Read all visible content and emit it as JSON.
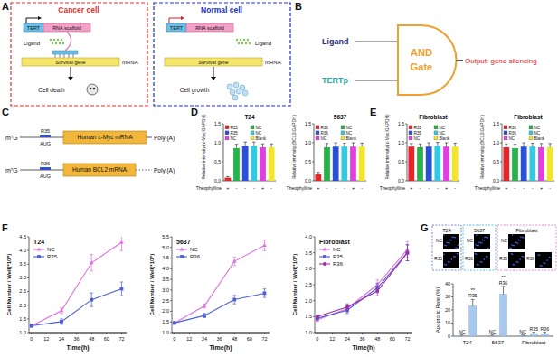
{
  "panel_labels": [
    "A",
    "B",
    "C",
    "D",
    "E",
    "F",
    "G"
  ],
  "diagram_a": {
    "cells": [
      {
        "title": "Cancer cell",
        "color": "#e03030",
        "promoter": "TERT",
        "scaffold": "RNA scaffold",
        "ligand": "Ligand",
        "gene": "Survival gene",
        "transcript": "mRNA",
        "outcome": "Cell death"
      },
      {
        "title": "Normal cell",
        "color": "#2030c0",
        "promoter": "TERT",
        "scaffold": "RNA scaffold",
        "ligand": "Ligand",
        "gene": "Survival gene",
        "transcript": "mRNA",
        "outcome": "Cell growth"
      }
    ]
  },
  "diagram_b": {
    "inputs": [
      {
        "text": "Ligand",
        "color": "#2b2b80"
      },
      {
        "text": "TERTp",
        "color": "#2aa7a0"
      }
    ],
    "gate": [
      "AND",
      "Gate"
    ],
    "gate_color": "#f0a030",
    "output": "Output: gene silencing",
    "output_color": "#e02020"
  },
  "diagram_c": {
    "constructs": [
      {
        "cap": "m⁷G",
        "element": "R35",
        "start": "AUG",
        "gene": "Human c-Myc mRNA",
        "tail": "Poly (A)"
      },
      {
        "cap": "m⁷G",
        "element": "R36",
        "start": "AUG",
        "gene": "Human BCL2 mRNA",
        "tail": "Poly (A)"
      }
    ]
  },
  "images_g": {
    "groups": [
      {
        "title": "T24",
        "color": "#4a6ad0",
        "frames": [
          "NC",
          "R35"
        ]
      },
      {
        "title": "5637",
        "color": "#30b8d8",
        "frames": [
          "NC",
          "R36"
        ]
      },
      {
        "title": "Fibroblast",
        "color": "#e070d0",
        "frames": [
          "NC",
          "R35",
          "R36"
        ]
      }
    ]
  },
  "chart_data": [
    {
      "type": "bar",
      "title": "T24",
      "y_label": "Relative intensity (c-Myc/GAPDH)",
      "categories": [
        "R35",
        "NC",
        "R35",
        "NC",
        "NC",
        "Blank"
      ],
      "values": [
        0.08,
        0.86,
        0.92,
        0.92,
        0.88,
        0.88
      ],
      "errors": [
        0.03,
        0.1,
        0.1,
        0.1,
        0.09,
        0.09
      ],
      "colors": [
        "#e8262a",
        "#27b24a",
        "#2a4fd8",
        "#33c9e0",
        "#e040e0",
        "#f2e62a"
      ],
      "ylim": [
        0,
        1.5
      ],
      "yticks": [
        {
          "value": 0,
          "label": "0.0"
        },
        0.5,
        {
          "value": 1,
          "label": "1.0"
        },
        1.5
      ],
      "legend": "top-left",
      "tick_labels": "y",
      "treatment_label": "Theophylline",
      "treatment_signs": [
        "+",
        "-",
        "-",
        "-",
        "+",
        "-"
      ]
    },
    {
      "type": "bar",
      "title": "5637",
      "y_label": "Relative intensity (BCL2/GAPDH)",
      "categories": [
        "R36",
        "NC",
        "R36",
        "NC",
        "NC",
        "Blank"
      ],
      "values": [
        0.18,
        0.88,
        0.9,
        0.9,
        0.9,
        0.9
      ],
      "errors": [
        0.04,
        0.1,
        0.1,
        0.09,
        0.1,
        0.09
      ],
      "colors": [
        "#e8262a",
        "#27b24a",
        "#2a4fd8",
        "#33c9e0",
        "#e040e0",
        "#f2e62a"
      ],
      "ylim": [
        0,
        1.5
      ],
      "yticks": [
        {
          "value": 0,
          "label": "0.0"
        },
        0.5,
        {
          "value": 1,
          "label": "1.0"
        },
        1.5
      ],
      "legend": "top-left",
      "tick_labels": "y",
      "treatment_label": "Theophylline",
      "treatment_signs": [
        "+",
        "-",
        "-",
        "-",
        "+",
        "-"
      ]
    },
    {
      "type": "bar",
      "title": "Fibroblast",
      "y_label": "Relative intensity (c-Myc/GAPDH)",
      "categories": [
        "R35",
        "NC",
        "R35",
        "NC",
        "NC",
        "Blank"
      ],
      "values": [
        0.9,
        0.88,
        0.9,
        0.92,
        0.9,
        0.9
      ],
      "errors": [
        0.08,
        0.09,
        0.1,
        0.09,
        0.1,
        0.09
      ],
      "colors": [
        "#e8262a",
        "#27b24a",
        "#2a4fd8",
        "#33c9e0",
        "#e040e0",
        "#f2e62a"
      ],
      "ylim": [
        0,
        1.5
      ],
      "yticks": [
        {
          "value": 0,
          "label": "0.0"
        },
        0.5,
        {
          "value": 1,
          "label": "1.0"
        },
        1.5
      ],
      "legend": "top-left",
      "tick_labels": "y",
      "treatment_label": "Theophylline",
      "treatment_signs": [
        "+",
        "-",
        "-",
        "-",
        "+",
        "-"
      ]
    },
    {
      "type": "bar",
      "title": "Fibroblast",
      "y_label": "Relative intensity (BCL2/GAPDH)",
      "categories": [
        "R36",
        "NC",
        "R36",
        "NC",
        "NC",
        "Blank"
      ],
      "values": [
        0.88,
        0.86,
        0.9,
        0.9,
        0.88,
        0.88
      ],
      "errors": [
        0.09,
        0.1,
        0.1,
        0.09,
        0.1,
        0.1
      ],
      "colors": [
        "#e8262a",
        "#27b24a",
        "#2a4fd8",
        "#33c9e0",
        "#e040e0",
        "#f2e62a"
      ],
      "ylim": [
        0,
        1.5
      ],
      "yticks": [
        {
          "value": 0,
          "label": "0.0"
        },
        0.5,
        {
          "value": 1,
          "label": "1.0"
        },
        1.5
      ],
      "legend": "top-left",
      "tick_labels": "y",
      "treatment_label": "Theophylline",
      "treatment_signs": [
        "+",
        "-",
        "-",
        "-",
        "+",
        "-"
      ]
    },
    {
      "type": "line",
      "title": "T24",
      "x_label": "Time(h)",
      "y_label": "Cell Number / Well(*10⁵)",
      "x": [
        0,
        24,
        48,
        72
      ],
      "xlim": [
        -2,
        76
      ],
      "xticks": [
        0,
        12,
        24,
        36,
        48,
        60,
        72
      ],
      "ylim": [
        1,
        4.5
      ],
      "yticks": [
        {
          "value": 1,
          "label": "1.0"
        },
        1.5,
        {
          "value": 2,
          "label": "2.0"
        },
        2.5,
        {
          "value": 3,
          "label": "3.0"
        },
        3.5,
        {
          "value": 4,
          "label": "4.0"
        },
        4.5
      ],
      "legend": "top-left",
      "series": [
        {
          "name": "NC",
          "color": "#e070e0",
          "marker": "triangle",
          "values": [
            1.25,
            1.8,
            3.55,
            4.3
          ],
          "errors": [
            0.05,
            0.1,
            0.3,
            0.3
          ]
        },
        {
          "name": "R35",
          "color": "#4c5fd5",
          "marker": "square",
          "values": [
            1.25,
            1.4,
            2.2,
            2.6
          ],
          "errors": [
            0.05,
            0.1,
            0.25,
            0.25
          ]
        }
      ]
    },
    {
      "type": "line",
      "title": "5637",
      "x_label": "Time(h)",
      "y_label": "Cell Number / Well(*10⁵)",
      "x": [
        0,
        24,
        48,
        72
      ],
      "xlim": [
        -2,
        76
      ],
      "xticks": [
        0,
        12,
        24,
        36,
        48,
        60,
        72
      ],
      "ylim": [
        1,
        5.5
      ],
      "yticks": [
        {
          "value": 1,
          "label": "1.0"
        },
        1.5,
        {
          "value": 2,
          "label": "2.0"
        },
        2.5,
        {
          "value": 3,
          "label": "3.0"
        },
        3.5,
        {
          "value": 4,
          "label": "4.0"
        },
        4.5,
        {
          "value": 5,
          "label": "5.0"
        },
        5.5
      ],
      "legend": "top-left",
      "series": [
        {
          "name": "NC",
          "color": "#e070e0",
          "marker": "triangle",
          "values": [
            1.45,
            2.25,
            4.35,
            5.1
          ],
          "errors": [
            0.05,
            0.1,
            0.2,
            0.25
          ]
        },
        {
          "name": "R36",
          "color": "#4c5fd5",
          "marker": "square",
          "values": [
            1.45,
            1.8,
            2.55,
            2.85
          ],
          "errors": [
            0.05,
            0.1,
            0.2,
            0.2
          ]
        }
      ]
    },
    {
      "type": "line",
      "title": "Fibroblast",
      "x_label": "Time(h)",
      "y_label": "Cell Number / Well(*10⁵)",
      "x": [
        0,
        24,
        48,
        72
      ],
      "xlim": [
        -2,
        76
      ],
      "xticks": [
        0,
        12,
        24,
        36,
        48,
        60,
        72
      ],
      "ylim": [
        1,
        4
      ],
      "yticks": [
        {
          "value": 1,
          "label": "1.0"
        },
        1.5,
        {
          "value": 2,
          "label": "2.0"
        },
        2.5,
        {
          "value": 3,
          "label": "3.0"
        },
        3.5,
        {
          "value": 4,
          "label": "4.0"
        }
      ],
      "legend": "top-left",
      "series": [
        {
          "name": "NC",
          "color": "#e070e0",
          "marker": "triangle",
          "values": [
            1.4,
            1.75,
            2.5,
            3.6
          ],
          "errors": [
            0.05,
            0.1,
            0.15,
            0.25
          ]
        },
        {
          "name": "R35",
          "color": "#4c5fd5",
          "marker": "square",
          "values": [
            1.45,
            1.7,
            2.4,
            3.5
          ],
          "errors": [
            0.05,
            0.1,
            0.15,
            0.25
          ]
        },
        {
          "name": "R36",
          "color": "#9b30a0",
          "marker": "circle",
          "values": [
            1.5,
            1.8,
            2.3,
            3.5
          ],
          "errors": [
            0.05,
            0.1,
            0.15,
            0.25
          ]
        }
      ]
    },
    {
      "type": "bar",
      "y_label": "Apoptotic Rate (%)",
      "categories": [
        "NC",
        "R35",
        "NC",
        "R36",
        "NC",
        "R35",
        "R36"
      ],
      "values": [
        0.6,
        23,
        0.6,
        32,
        0.6,
        2,
        2
      ],
      "errors": [
        0.3,
        5,
        0.3,
        6,
        0.3,
        1,
        1
      ],
      "color": "#a8c8ec",
      "ylim": [
        0,
        40
      ],
      "yticks": [
        0,
        10,
        20,
        30,
        40
      ],
      "groups": [
        "T24",
        "5637",
        "Fibroblast"
      ],
      "group_sizes": [
        2,
        2,
        3
      ],
      "annotations": [
        {
          "index": 1,
          "text": "**"
        },
        {
          "index": 3,
          "text": "**"
        }
      ]
    }
  ]
}
